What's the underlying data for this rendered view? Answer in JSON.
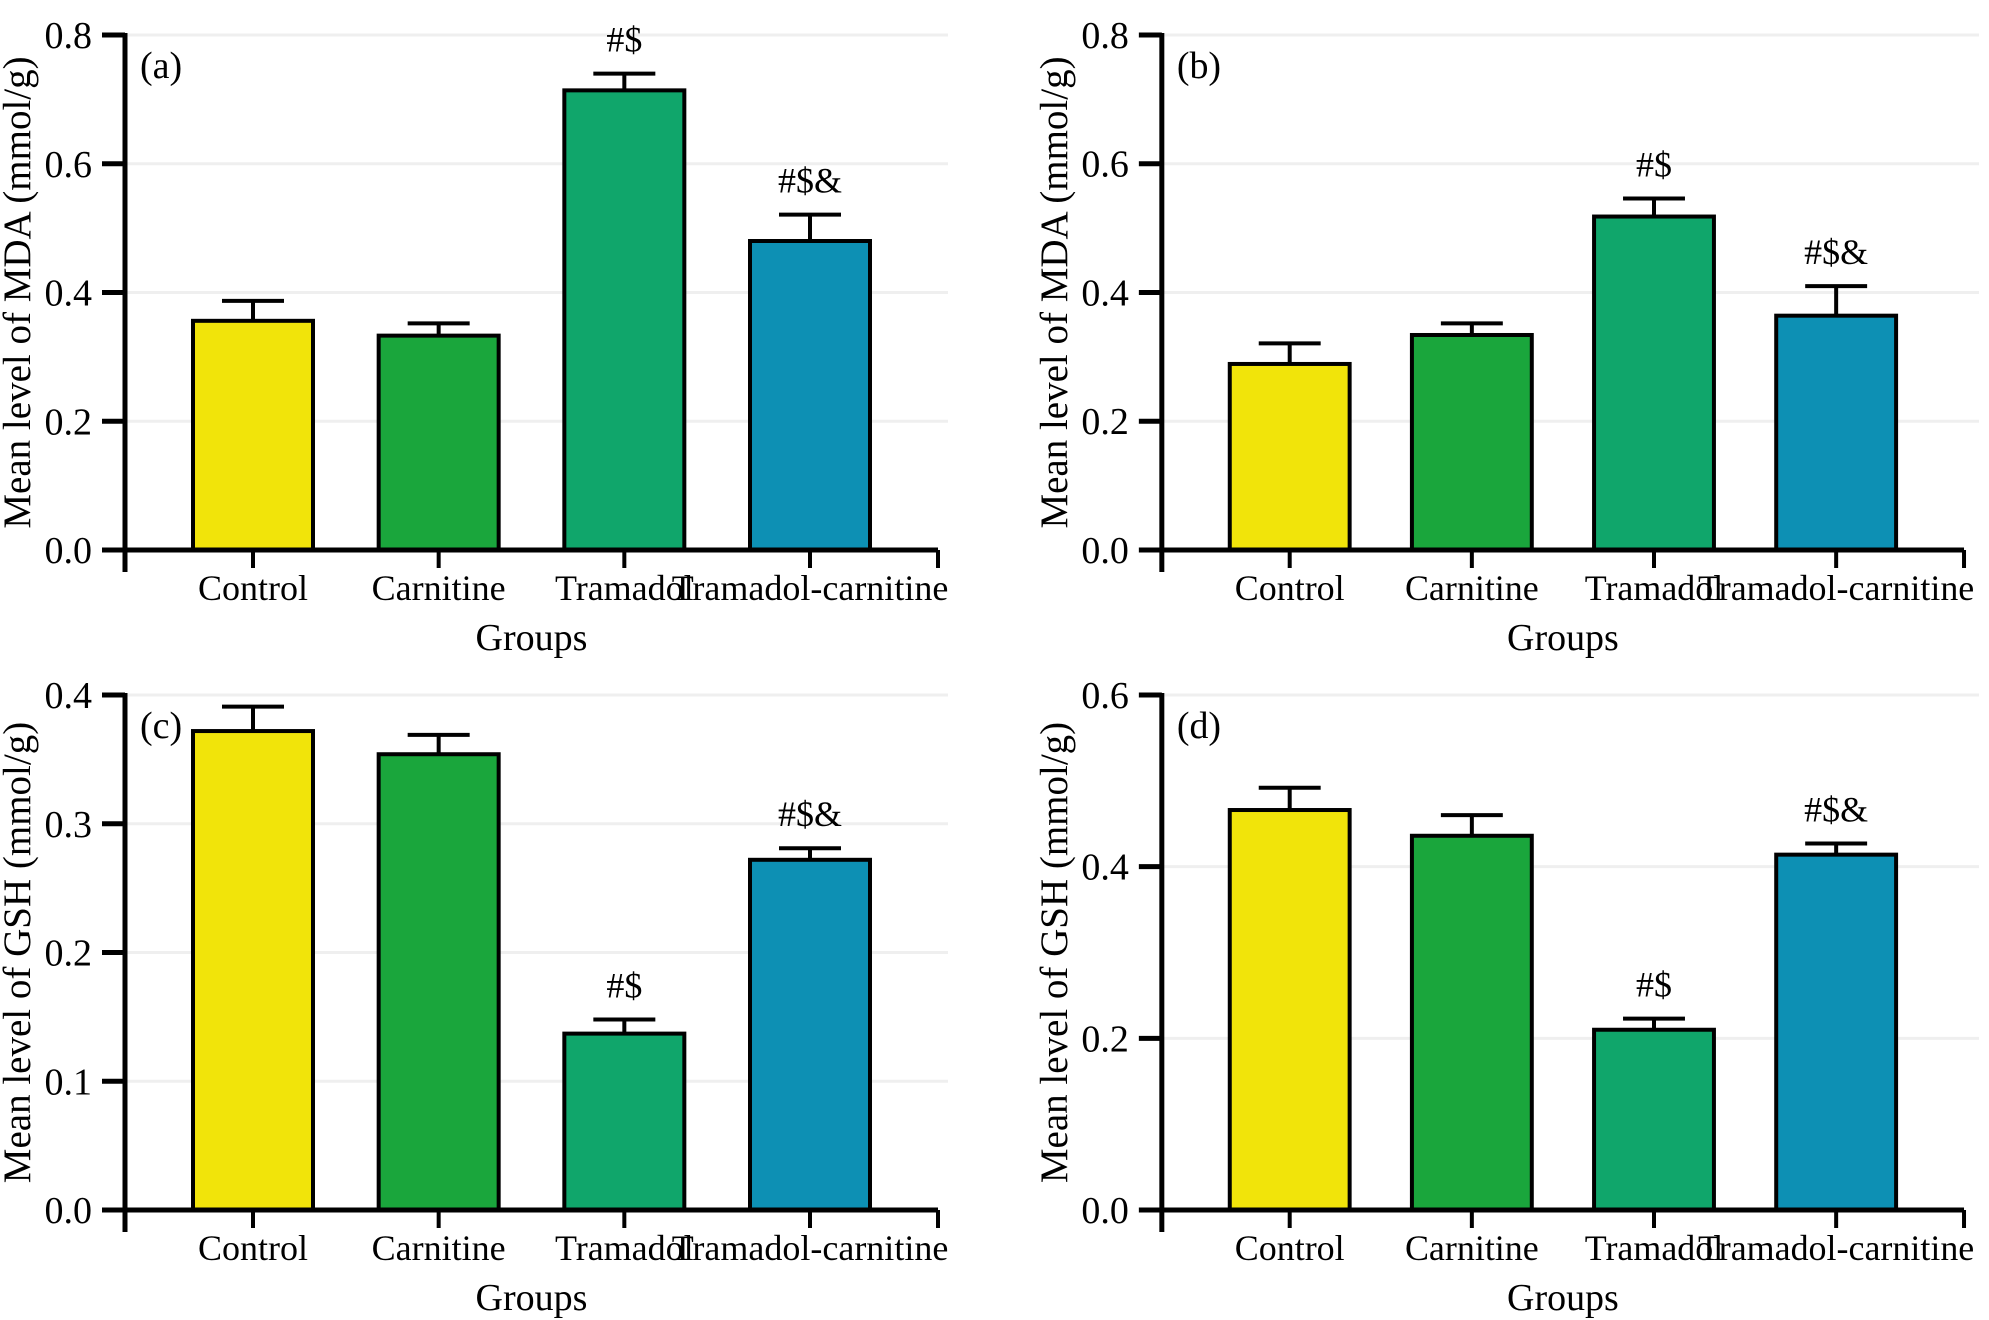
{
  "figure": {
    "background": "#ffffff",
    "axis_color": "#000000",
    "grid_color": "#efefef",
    "bar_stroke_color": "#000000"
  },
  "chart_data": [
    {
      "type": "bar",
      "panel": "(a)",
      "ylabel": "Mean level of MDA (mmol/g)",
      "xlabel": "Groups",
      "ylim": [
        0,
        0.8
      ],
      "ytick_step": 0.2,
      "grid": true,
      "legend": "none",
      "categories": [
        "Control",
        "Carnitine",
        "Tramadol",
        "Tramadol-carnitine"
      ],
      "values": [
        0.356,
        0.333,
        0.714,
        0.48
      ],
      "errors": [
        0.031,
        0.019,
        0.026,
        0.041
      ],
      "annotations": [
        "",
        "",
        "#$",
        "#$&"
      ],
      "bar_colors": [
        "#f1e40a",
        "#1aa63c",
        "#10a66b",
        "#0d90b4"
      ]
    },
    {
      "type": "bar",
      "panel": "(b)",
      "ylabel": "Mean level of MDA (mmol/g)",
      "xlabel": "Groups",
      "ylim": [
        0,
        0.8
      ],
      "ytick_step": 0.2,
      "grid": true,
      "legend": "none",
      "categories": [
        "Control",
        "Carnitine",
        "Tramadol",
        "Tramadol-carnitine"
      ],
      "values": [
        0.289,
        0.334,
        0.518,
        0.364
      ],
      "errors": [
        0.032,
        0.018,
        0.028,
        0.046
      ],
      "annotations": [
        "",
        "",
        "#$",
        "#$&"
      ],
      "bar_colors": [
        "#f1e40a",
        "#1aa63c",
        "#10a66b",
        "#0d90b4"
      ]
    },
    {
      "type": "bar",
      "panel": "(c)",
      "ylabel": "Mean level of GSH (mmol/g)",
      "xlabel": "Groups",
      "ylim": [
        0,
        0.4
      ],
      "ytick_step": 0.1,
      "grid": true,
      "legend": "none",
      "categories": [
        "Control",
        "Carnitine",
        "Tramadol",
        "Tramadol-carnitine"
      ],
      "values": [
        0.372,
        0.354,
        0.137,
        0.272
      ],
      "errors": [
        0.019,
        0.015,
        0.011,
        0.009
      ],
      "annotations": [
        "",
        "",
        "#$",
        "#$&"
      ],
      "bar_colors": [
        "#f1e40a",
        "#1aa63c",
        "#10a66b",
        "#0d90b4"
      ]
    },
    {
      "type": "bar",
      "panel": "(d)",
      "ylabel": "Mean level of GSH (mmol/g)",
      "xlabel": "Groups",
      "ylim": [
        0,
        0.6
      ],
      "ytick_step": 0.2,
      "grid": true,
      "legend": "none",
      "categories": [
        "Control",
        "Carnitine",
        "Tramadol",
        "Tramadol-carnitine"
      ],
      "values": [
        0.466,
        0.436,
        0.21,
        0.414
      ],
      "errors": [
        0.026,
        0.024,
        0.013,
        0.013
      ],
      "annotations": [
        "",
        "",
        "#$",
        "#$&"
      ],
      "bar_colors": [
        "#f1e40a",
        "#1aa63c",
        "#10a66b",
        "#0d90b4"
      ]
    }
  ]
}
